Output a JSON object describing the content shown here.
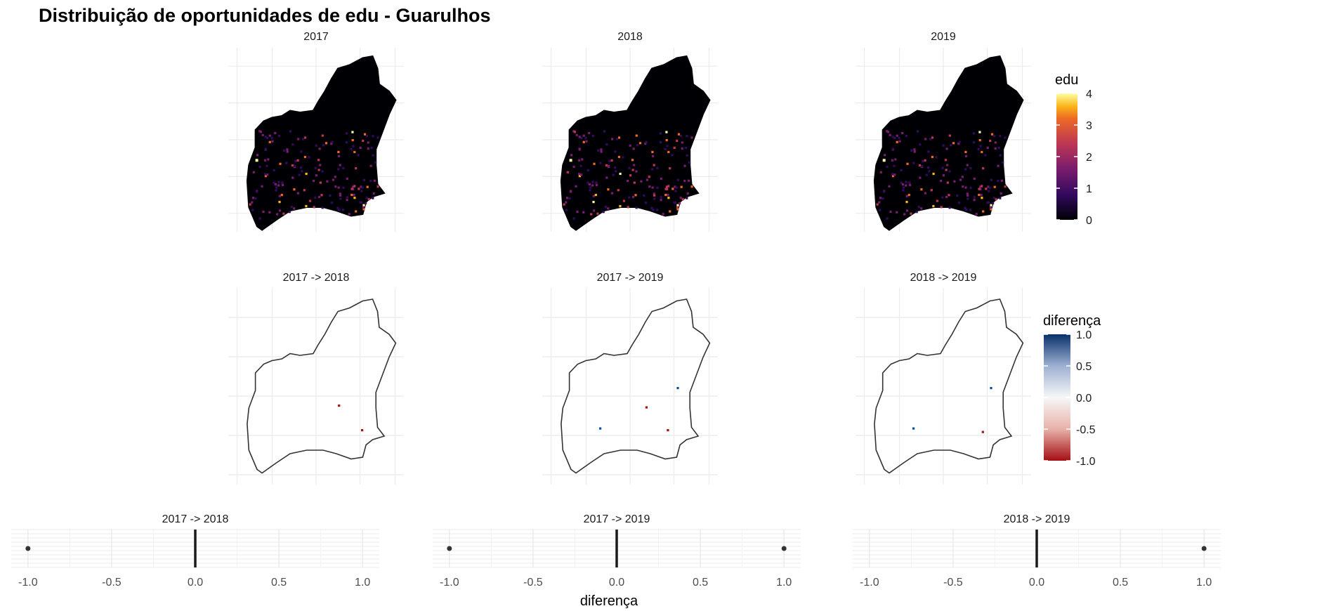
{
  "title": "Distribuição de oportunidades de edu - Guarulhos",
  "colors": {
    "fill_dark": "#000004",
    "border": "#333333",
    "grid": "#ebebeb",
    "point": "#333333"
  },
  "chart_data": [
    {
      "type": "heatmap",
      "name": "hex-maps",
      "panels": [
        "2017",
        "2018",
        "2019"
      ],
      "legend": {
        "title": "edu",
        "ticks": [
          "4",
          "3",
          "2",
          "1",
          "0"
        ],
        "range": [
          0,
          4
        ]
      }
    },
    {
      "type": "heatmap",
      "name": "diff-maps",
      "panels": [
        "2017 -> 2018",
        "2017 -> 2019",
        "2018 -> 2019"
      ],
      "legend": {
        "title": "diferença",
        "ticks": [
          "1.0",
          "0.5",
          "0.0",
          "-0.5",
          "-1.0"
        ],
        "range": [
          -1,
          1
        ]
      },
      "changes": [
        [
          {
            "value": -1
          },
          {
            "value": -1
          }
        ],
        [
          {
            "value": 1
          },
          {
            "value": -1
          },
          {
            "value": 1
          },
          {
            "value": -1
          }
        ],
        [
          {
            "value": 1
          },
          {
            "value": 1
          },
          {
            "value": -1
          }
        ]
      ]
    },
    {
      "type": "scatter",
      "name": "diff-distributions",
      "panels": [
        {
          "label": "2017 -> 2018",
          "points": [
            -1
          ],
          "median": 0
        },
        {
          "label": "2017 -> 2019",
          "points": [
            -1,
            1
          ],
          "median": 0
        },
        {
          "label": "2018 -> 2019",
          "points": [
            1
          ],
          "median": 0
        }
      ],
      "x_ticks": [
        "-1.0",
        "-0.5",
        "0.0",
        "0.5",
        "1.0"
      ],
      "xlim": [
        -1.1,
        1.1
      ],
      "xlabel": "diferença"
    }
  ]
}
